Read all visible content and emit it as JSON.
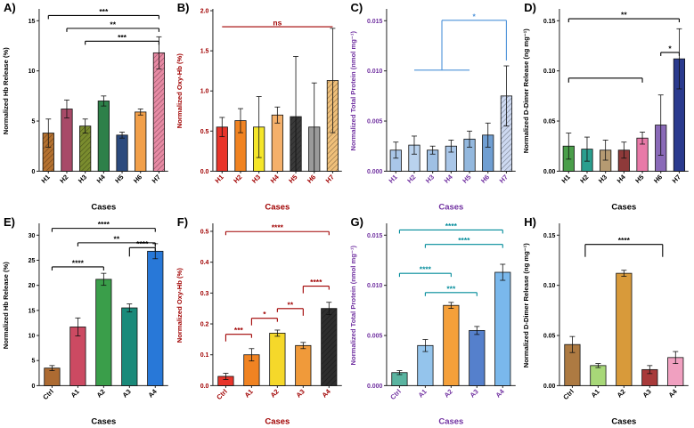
{
  "chart_data": [
    {
      "panel_label": "A)",
      "type": "bar",
      "categories": [
        "H1",
        "H2",
        "H3",
        "H4",
        "H5",
        "H6",
        "H7"
      ],
      "values": [
        3.8,
        6.2,
        4.5,
        7.0,
        3.6,
        5.9,
        11.8
      ],
      "errors": [
        1.4,
        0.9,
        0.7,
        0.5,
        0.3,
        0.3,
        1.6
      ],
      "ylabel": "Normalized Hb Release (%)",
      "xlabel": "Cases",
      "ylim": [
        0,
        16
      ],
      "yticks": [
        0,
        5,
        10,
        15
      ],
      "ytick_labels": [
        "0",
        "5",
        "10",
        "15"
      ],
      "axis_color": "#000000",
      "bar_colors": [
        "#b5712f",
        "#a84a68",
        "#7a8c2e",
        "#2e8049",
        "#2b4a7d",
        "#f2a04a",
        "#e88aa4"
      ],
      "hatch": [
        1,
        0,
        1,
        0,
        0,
        0,
        1
      ],
      "brackets": [
        {
          "text": "***",
          "from": 0,
          "to": 6,
          "level": 0.03
        },
        {
          "text": "**",
          "from": 1,
          "to": 6,
          "level": 0.11
        },
        {
          "text": "***",
          "from": 2,
          "to": 6,
          "level": 0.19
        }
      ]
    },
    {
      "panel_label": "B)",
      "type": "bar",
      "categories": [
        "H1",
        "H2",
        "H3",
        "H4",
        "H5",
        "H6",
        "H7"
      ],
      "values": [
        0.55,
        0.63,
        0.55,
        0.7,
        0.68,
        0.55,
        1.13
      ],
      "errors": [
        0.12,
        0.15,
        0.38,
        0.1,
        0.75,
        0.55,
        0.65
      ],
      "ylabel": "Normalized Oxy-Hb (%)",
      "xlabel": "Cases",
      "ylim": [
        0,
        2.0
      ],
      "yticks": [
        0,
        0.5,
        1.0,
        1.5,
        2.0
      ],
      "ytick_labels": [
        "0.0",
        "0.5",
        "1.0",
        "1.5",
        "2.0"
      ],
      "axis_color": "#a00000",
      "bar_colors": [
        "#e8342a",
        "#f08322",
        "#f5e62a",
        "#f5b06a",
        "#3a3a3a",
        "#9a9a9a",
        "#f0c07a"
      ],
      "hatch": [
        0,
        0,
        0,
        0,
        1,
        0,
        1
      ],
      "brackets": [
        {
          "text": "ns",
          "from": 0,
          "to": 6,
          "level": 0.1,
          "d1": 0,
          "d2": 0
        }
      ]
    },
    {
      "panel_label": "C)",
      "type": "bar",
      "categories": [
        "H1",
        "H2",
        "H3",
        "H4",
        "H5",
        "H6",
        "H7"
      ],
      "values": [
        0.0021,
        0.0026,
        0.0021,
        0.0025,
        0.0032,
        0.0036,
        0.0075
      ],
      "errors": [
        0.0008,
        0.0009,
        0.0004,
        0.0006,
        0.0008,
        0.0012,
        0.003
      ],
      "ylabel": "Normalized Total Protein (nmol mg⁻¹)",
      "xlabel": "Cases",
      "ylim": [
        0,
        0.016
      ],
      "yticks": [
        0,
        0.005,
        0.01,
        0.015
      ],
      "ytick_labels": [
        "0.000",
        "0.005",
        "0.010",
        "0.015"
      ],
      "axis_color": "#7030a0",
      "bar_colors": [
        "#a9c6e8",
        "#b9d2ee",
        "#9fc0e4",
        "#a9c6e8",
        "#93b8de",
        "#6f9ed2",
        "#cdd9f1"
      ],
      "hatch": [
        0,
        0,
        0,
        0,
        0,
        0,
        1
      ],
      "brackets": [
        {
          "text": "*",
          "from": 2.5,
          "to": 6,
          "level": 0.06,
          "d1": 56,
          "d2": 45,
          "color": "#4a90d9"
        },
        {
          "text": "",
          "from": 1,
          "to": 4,
          "level": 0.37,
          "d1": 0,
          "d2": 0,
          "color": "#4a90d9"
        }
      ]
    },
    {
      "panel_label": "D)",
      "type": "bar",
      "categories": [
        "H1",
        "H2",
        "H3",
        "H4",
        "H5",
        "H6",
        "H7"
      ],
      "values": [
        0.025,
        0.022,
        0.021,
        0.021,
        0.033,
        0.046,
        0.112
      ],
      "errors": [
        0.013,
        0.012,
        0.01,
        0.008,
        0.006,
        0.03,
        0.03
      ],
      "ylabel": "Normalized D-Dimer Release (ng mg⁻¹)",
      "xlabel": "Cases",
      "ylim": [
        0,
        0.16
      ],
      "yticks": [
        0,
        0.05,
        0.1,
        0.15
      ],
      "ytick_labels": [
        "0.00",
        "0.05",
        "0.10",
        "0.15"
      ],
      "axis_color": "#000000",
      "bar_colors": [
        "#4a9e4a",
        "#2a9e8e",
        "#b59a72",
        "#8e3a3a",
        "#e87aa8",
        "#8a6ab8",
        "#2a3a8e"
      ],
      "hatch": [
        0,
        0,
        0,
        0,
        0,
        0,
        0
      ],
      "brackets": [
        {
          "text": "**",
          "from": 0,
          "to": 6,
          "level": 0.05
        },
        {
          "text": "*",
          "from": 5,
          "to": 6,
          "level": 0.26,
          "d2": 4
        },
        {
          "text": "",
          "from": 0,
          "to": 4,
          "level": 0.42,
          "d1": 5,
          "d2": 5
        }
      ]
    },
    {
      "panel_label": "E)",
      "type": "bar",
      "categories": [
        "Ctrl",
        "A1",
        "A2",
        "A3",
        "A4"
      ],
      "values": [
        3.5,
        11.7,
        21.2,
        15.5,
        26.8
      ],
      "errors": [
        0.5,
        1.8,
        1.2,
        0.8,
        1.5
      ],
      "ylabel": "Normalized Hb Release (%)",
      "xlabel": "Cases",
      "ylim": [
        0,
        32
      ],
      "yticks": [
        0,
        5,
        10,
        15,
        20,
        25,
        30
      ],
      "ytick_labels": [
        "0",
        "5",
        "10",
        "15",
        "20",
        "25",
        "30"
      ],
      "axis_color": "#000000",
      "bar_colors": [
        "#ad6b32",
        "#cc4a62",
        "#3a9e4a",
        "#1a8a7a",
        "#2878d8"
      ],
      "hatch": [
        0,
        0,
        0,
        0,
        0
      ],
      "brackets": [
        {
          "text": "****",
          "from": 0,
          "to": 4,
          "level": 0.02
        },
        {
          "text": "**",
          "from": 1,
          "to": 4,
          "level": 0.11
        },
        {
          "text": "****",
          "from": 0,
          "to": 2,
          "level": 0.26
        },
        {
          "text": "****",
          "from": 3,
          "to": 4,
          "level": 0.14,
          "d1": 10,
          "d2": 4
        }
      ]
    },
    {
      "panel_label": "F)",
      "type": "bar",
      "categories": [
        "Ctrl",
        "A1",
        "A2",
        "A3",
        "A4"
      ],
      "values": [
        0.03,
        0.1,
        0.17,
        0.13,
        0.25
      ],
      "errors": [
        0.01,
        0.02,
        0.01,
        0.01,
        0.02
      ],
      "ylabel": "Normalized Oxy-Hb (%)",
      "xlabel": "Cases",
      "ylim": [
        0,
        0.52
      ],
      "yticks": [
        0,
        0.1,
        0.2,
        0.3,
        0.4,
        0.5
      ],
      "ytick_labels": [
        "0.0",
        "0.1",
        "0.2",
        "0.3",
        "0.4",
        "0.5"
      ],
      "axis_color": "#a00000",
      "bar_colors": [
        "#e8342a",
        "#f08322",
        "#f5d82a",
        "#f09a3a",
        "#2e2e2e"
      ],
      "hatch": [
        0,
        0,
        0,
        0,
        1
      ],
      "brackets": [
        {
          "text": "****",
          "from": 0,
          "to": 4,
          "level": 0.04
        },
        {
          "text": "****",
          "from": 3,
          "to": 4,
          "level": 0.38,
          "d1": 8,
          "d2": 4
        },
        {
          "text": "**",
          "from": 2,
          "to": 3,
          "level": 0.52,
          "d1": 4,
          "d2": 8
        },
        {
          "text": "*",
          "from": 1,
          "to": 2,
          "level": 0.58,
          "d1": 8,
          "d2": 4
        },
        {
          "text": "***",
          "from": 0,
          "to": 1,
          "level": 0.68,
          "d1": 8,
          "d2": 4
        }
      ]
    },
    {
      "panel_label": "G)",
      "type": "bar",
      "categories": [
        "Ctrl",
        "A1",
        "A2",
        "A3",
        "A4"
      ],
      "values": [
        0.0013,
        0.004,
        0.008,
        0.0055,
        0.0113
      ],
      "errors": [
        0.0002,
        0.0006,
        0.0003,
        0.0004,
        0.0008
      ],
      "ylabel": "Normalized Total Protein (nmol mg⁻¹)",
      "xlabel": "Cases",
      "ylim": [
        0,
        0.016
      ],
      "yticks": [
        0,
        0.005,
        0.01,
        0.015
      ],
      "ytick_labels": [
        "0.000",
        "0.005",
        "0.010",
        "0.015"
      ],
      "axis_color": "#7030a0",
      "bar_colors": [
        "#5ab4a0",
        "#94c4ec",
        "#f5a03a",
        "#5580cc",
        "#7ab8ec"
      ],
      "hatch": [
        0,
        0,
        0,
        0,
        0
      ],
      "brackets": [
        {
          "text": "****",
          "from": 0,
          "to": 4,
          "level": 0.03,
          "color": "#008b9a"
        },
        {
          "text": "****",
          "from": 1,
          "to": 4,
          "level": 0.12,
          "color": "#008b9a"
        },
        {
          "text": "****",
          "from": 0,
          "to": 2,
          "level": 0.3,
          "color": "#008b9a"
        },
        {
          "text": "***",
          "from": 1,
          "to": 3,
          "level": 0.42,
          "color": "#008b9a"
        }
      ]
    },
    {
      "panel_label": "H)",
      "type": "bar",
      "categories": [
        "Ctrl",
        "A1",
        "A2",
        "A3",
        "A4"
      ],
      "values": [
        0.041,
        0.02,
        0.112,
        0.016,
        0.028
      ],
      "errors": [
        0.008,
        0.002,
        0.003,
        0.004,
        0.006
      ],
      "ylabel": "Normalized D-Dimer Release (ng mg⁻¹)",
      "xlabel": "Cases",
      "ylim": [
        0,
        0.16
      ],
      "yticks": [
        0,
        0.05,
        0.1,
        0.15
      ],
      "ytick_labels": [
        "0.00",
        "0.05",
        "0.10",
        "0.15"
      ],
      "axis_color": "#000000",
      "bar_colors": [
        "#ad7a42",
        "#a8d878",
        "#d89a3a",
        "#a83a3a",
        "#f0a0c0"
      ],
      "hatch": [
        0,
        0,
        0,
        0,
        0
      ],
      "brackets": [
        {
          "text": "****",
          "from": 0.5,
          "to": 3.5,
          "level": 0.12,
          "d1": 14,
          "d2": 14
        }
      ]
    }
  ]
}
